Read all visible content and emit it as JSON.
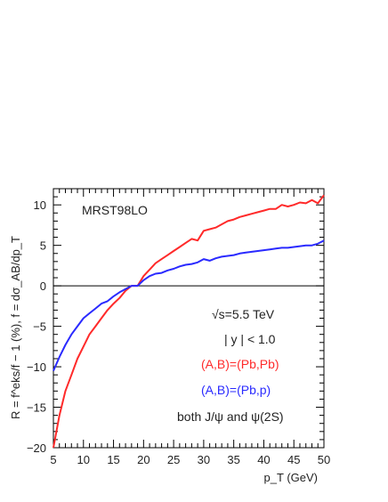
{
  "chart_data": {
    "type": "line",
    "xlim": [
      5,
      50
    ],
    "ylim": [
      -20,
      12
    ],
    "x_ticks": [
      5,
      10,
      15,
      20,
      25,
      30,
      35,
      40,
      45,
      50
    ],
    "y_ticks": [
      10,
      5,
      0,
      -5,
      -10,
      -15,
      -20
    ],
    "xlabel": "p_T (GeV)",
    "ylabel": "R = f^eks/f − 1 (%),  f = dσ_AB/dp_T",
    "pdf_label": "MRST98LO",
    "annotations": {
      "energy": "√s=5.5 TeV",
      "rapidity": "| y | < 1.0",
      "pbpb": "(A,B)=(Pb,Pb)",
      "pbp": "(A,B)=(Pb,p)",
      "states": "both J/ψ and ψ(2S)"
    },
    "series": [
      {
        "name": "(A,B)=(Pb,Pb)",
        "color": "#ff2a2a",
        "points": [
          [
            5,
            -20
          ],
          [
            6,
            -16
          ],
          [
            7,
            -13
          ],
          [
            8,
            -11
          ],
          [
            9,
            -9
          ],
          [
            10,
            -7.5
          ],
          [
            11,
            -6
          ],
          [
            12,
            -5
          ],
          [
            13,
            -4
          ],
          [
            14,
            -3
          ],
          [
            15,
            -2.2
          ],
          [
            16,
            -1.5
          ],
          [
            17,
            -0.6
          ],
          [
            18,
            0
          ],
          [
            19,
            0
          ],
          [
            20,
            1.2
          ],
          [
            21,
            2
          ],
          [
            22,
            2.8
          ],
          [
            23,
            3.3
          ],
          [
            24,
            3.8
          ],
          [
            25,
            4.3
          ],
          [
            26,
            4.8
          ],
          [
            27,
            5.3
          ],
          [
            28,
            5.8
          ],
          [
            29,
            5.6
          ],
          [
            30,
            6.8
          ],
          [
            31,
            7
          ],
          [
            32,
            7.2
          ],
          [
            33,
            7.6
          ],
          [
            34,
            8
          ],
          [
            35,
            8.2
          ],
          [
            36,
            8.5
          ],
          [
            37,
            8.7
          ],
          [
            38,
            8.9
          ],
          [
            39,
            9.1
          ],
          [
            40,
            9.3
          ],
          [
            41,
            9.5
          ],
          [
            42,
            9.5
          ],
          [
            43,
            10
          ],
          [
            44,
            9.8
          ],
          [
            45,
            10
          ],
          [
            46,
            10.3
          ],
          [
            47,
            10.2
          ],
          [
            48,
            10.6
          ],
          [
            49,
            10.2
          ],
          [
            50,
            11.2
          ]
        ]
      },
      {
        "name": "(A,B)=(Pb,p)",
        "color": "#2a2aff",
        "points": [
          [
            5,
            -10.5
          ],
          [
            6,
            -8.8
          ],
          [
            7,
            -7.3
          ],
          [
            8,
            -6
          ],
          [
            9,
            -5
          ],
          [
            10,
            -4
          ],
          [
            11,
            -3.4
          ],
          [
            12,
            -2.8
          ],
          [
            13,
            -2.2
          ],
          [
            14,
            -1.9
          ],
          [
            15,
            -1.3
          ],
          [
            16,
            -0.8
          ],
          [
            17,
            -0.4
          ],
          [
            18,
            0
          ],
          [
            19,
            0
          ],
          [
            20,
            0.7
          ],
          [
            21,
            1.2
          ],
          [
            22,
            1.5
          ],
          [
            23,
            1.6
          ],
          [
            24,
            1.9
          ],
          [
            25,
            2.1
          ],
          [
            26,
            2.4
          ],
          [
            27,
            2.6
          ],
          [
            28,
            2.7
          ],
          [
            29,
            2.9
          ],
          [
            30,
            3.3
          ],
          [
            31,
            3.1
          ],
          [
            32,
            3.4
          ],
          [
            33,
            3.6
          ],
          [
            34,
            3.7
          ],
          [
            35,
            3.8
          ],
          [
            36,
            4
          ],
          [
            37,
            4.1
          ],
          [
            38,
            4.2
          ],
          [
            39,
            4.3
          ],
          [
            40,
            4.4
          ],
          [
            41,
            4.5
          ],
          [
            42,
            4.6
          ],
          [
            43,
            4.7
          ],
          [
            44,
            4.7
          ],
          [
            45,
            4.8
          ],
          [
            46,
            4.9
          ],
          [
            47,
            5
          ],
          [
            48,
            5
          ],
          [
            49,
            5.2
          ],
          [
            50,
            5.6
          ]
        ]
      }
    ]
  }
}
